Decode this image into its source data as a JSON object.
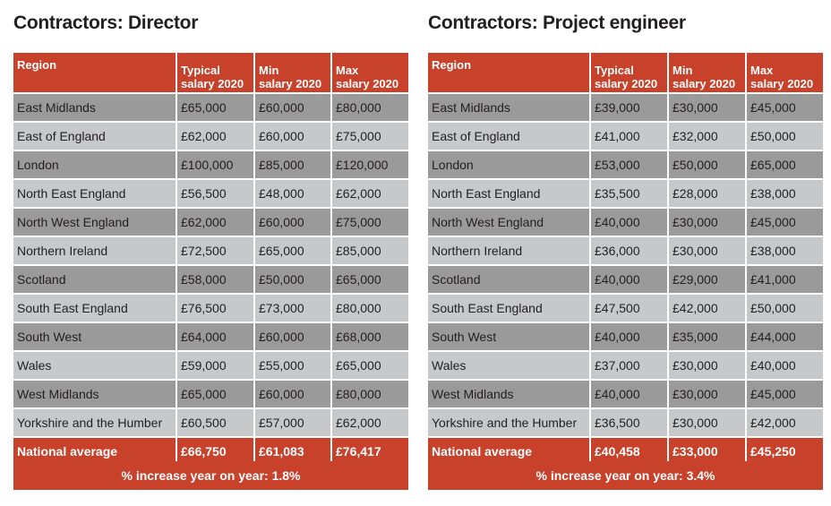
{
  "panels": [
    {
      "title": "Contractors: Director",
      "columns": {
        "region": "Region",
        "typical": [
          "Typical",
          "salary 2020"
        ],
        "min": [
          "Min",
          "salary 2020"
        ],
        "max": [
          "Max",
          "salary 2020"
        ]
      },
      "rows": [
        {
          "region": "East Midlands",
          "typical": "£65,000",
          "min": "£60,000",
          "max": "£80,000"
        },
        {
          "region": "East of England",
          "typical": "£62,000",
          "min": "£60,000",
          "max": "£75,000"
        },
        {
          "region": "London",
          "typical": "£100,000",
          "min": "£85,000",
          "max": "£120,000"
        },
        {
          "region": "North East England",
          "typical": "£56,500",
          "min": "£48,000",
          "max": "£62,000"
        },
        {
          "region": "North West England",
          "typical": "£62,000",
          "min": "£60,000",
          "max": "£75,000"
        },
        {
          "region": "Northern Ireland",
          "typical": "£72,500",
          "min": "£65,000",
          "max": "£85,000"
        },
        {
          "region": "Scotland",
          "typical": "£58,000",
          "min": "£50,000",
          "max": "£65,000"
        },
        {
          "region": "South East England",
          "typical": "£76,500",
          "min": "£73,000",
          "max": "£80,000"
        },
        {
          "region": "South West",
          "typical": "£64,000",
          "min": "£60,000",
          "max": "£68,000"
        },
        {
          "region": "Wales",
          "typical": "£59,000",
          "min": "£55,000",
          "max": "£65,000"
        },
        {
          "region": "West Midlands",
          "typical": "£65,000",
          "min": "£60,000",
          "max": "£80,000"
        },
        {
          "region": "Yorkshire and the Humber",
          "typical": "£60,500",
          "min": "£57,000",
          "max": "£62,000"
        }
      ],
      "average": {
        "region": "National average",
        "typical": "£66,750",
        "min": "£61,083",
        "max": "£76,417"
      },
      "footer": "% increase year on year: 1.8%"
    },
    {
      "title": "Contractors: Project engineer",
      "columns": {
        "region": "Region",
        "typical": [
          "Typical",
          "salary 2020"
        ],
        "min": [
          "Min",
          "salary 2020"
        ],
        "max": [
          "Max",
          "salary 2020"
        ]
      },
      "rows": [
        {
          "region": "East Midlands",
          "typical": "£39,000",
          "min": "£30,000",
          "max": "£45,000"
        },
        {
          "region": "East of England",
          "typical": "£41,000",
          "min": "£32,000",
          "max": "£50,000"
        },
        {
          "region": "London",
          "typical": "£53,000",
          "min": "£50,000",
          "max": "£65,000"
        },
        {
          "region": "North East England",
          "typical": "£35,500",
          "min": "£28,000",
          "max": "£38,000"
        },
        {
          "region": "North West England",
          "typical": "£40,000",
          "min": "£30,000",
          "max": "£45,000"
        },
        {
          "region": "Northern Ireland",
          "typical": "£36,000",
          "min": "£30,000",
          "max": "£38,000"
        },
        {
          "region": "Scotland",
          "typical": "£40,000",
          "min": "£29,000",
          "max": "£41,000"
        },
        {
          "region": "South East England",
          "typical": "£47,500",
          "min": "£42,000",
          "max": "£50,000"
        },
        {
          "region": "South West",
          "typical": "£40,000",
          "min": "£35,000",
          "max": "£44,000"
        },
        {
          "region": "Wales",
          "typical": "£37,000",
          "min": "£30,000",
          "max": "£40,000"
        },
        {
          "region": "West Midlands",
          "typical": "£40,000",
          "min": "£30,000",
          "max": "£45,000"
        },
        {
          "region": "Yorkshire and the Humber",
          "typical": "£36,500",
          "min": "£30,000",
          "max": "£42,000"
        }
      ],
      "average": {
        "region": "National average",
        "typical": "£40,458",
        "min": "£33,000",
        "max": "£45,250"
      },
      "footer": "% increase year on year: 3.4%"
    }
  ],
  "colors": {
    "header_red": "#c8412b",
    "row_dark": "#9a9a9a",
    "row_light": "#c7c8ca",
    "title_text": "#231f20"
  }
}
